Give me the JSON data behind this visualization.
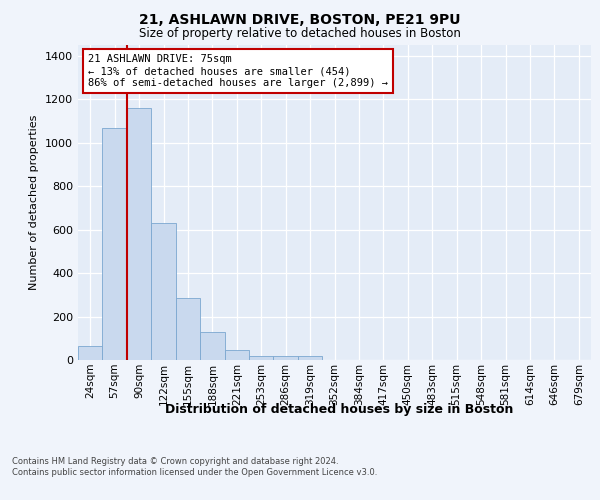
{
  "title_line1": "21, ASHLAWN DRIVE, BOSTON, PE21 9PU",
  "title_line2": "Size of property relative to detached houses in Boston",
  "xlabel": "Distribution of detached houses by size in Boston",
  "ylabel": "Number of detached properties",
  "categories": [
    "24sqm",
    "57sqm",
    "90sqm",
    "122sqm",
    "155sqm",
    "188sqm",
    "221sqm",
    "253sqm",
    "286sqm",
    "319sqm",
    "352sqm",
    "384sqm",
    "417sqm",
    "450sqm",
    "483sqm",
    "515sqm",
    "548sqm",
    "581sqm",
    "614sqm",
    "646sqm",
    "679sqm"
  ],
  "values": [
    65,
    1070,
    1160,
    630,
    285,
    130,
    47,
    20,
    20,
    20,
    0,
    0,
    0,
    0,
    0,
    0,
    0,
    0,
    0,
    0,
    0
  ],
  "bar_color": "#c9d9ee",
  "bar_edge_color": "#7ba7d0",
  "vline_x": 1.5,
  "vline_color": "#c00000",
  "annotation_text": "21 ASHLAWN DRIVE: 75sqm\n← 13% of detached houses are smaller (454)\n86% of semi-detached houses are larger (2,899) →",
  "annotation_box_color": "#ffffff",
  "annotation_box_edge": "#c00000",
  "ylim": [
    0,
    1450
  ],
  "yticks": [
    0,
    200,
    400,
    600,
    800,
    1000,
    1200,
    1400
  ],
  "footer": "Contains HM Land Registry data © Crown copyright and database right 2024.\nContains public sector information licensed under the Open Government Licence v3.0.",
  "bg_color": "#f0f4fb",
  "plot_bg_color": "#e4ecf7"
}
